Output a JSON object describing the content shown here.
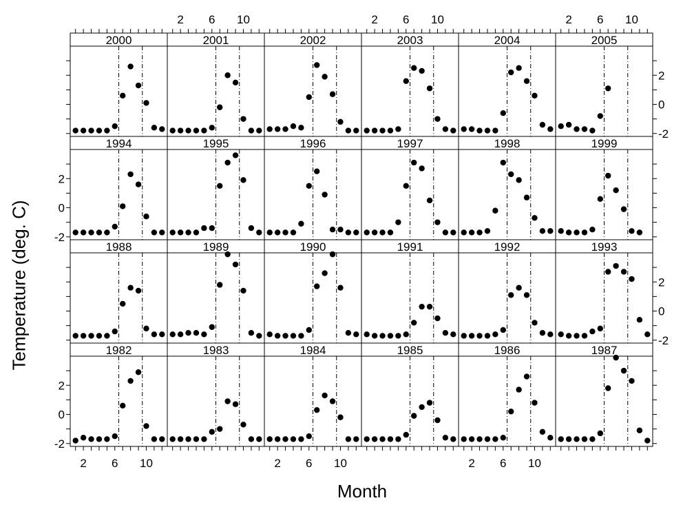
{
  "chart_data": {
    "type": "scatter",
    "layout": "trellis panels, 6 columns x 4 rows",
    "xlabel": "Month",
    "ylabel": "Temperature (deg. C)",
    "x_ticks": [
      2,
      6,
      10
    ],
    "y_ticks": [
      -2,
      0,
      2
    ],
    "xlim": [
      0.5,
      12.5
    ],
    "ylim": [
      -2.2,
      4.0
    ],
    "reference_lines_month": [
      6.5,
      9.5
    ],
    "reference_line_style": "dash-dot",
    "panels": [
      {
        "year": "2000",
        "values": [
          -1.8,
          -1.8,
          -1.8,
          -1.8,
          -1.8,
          -1.5,
          0.6,
          2.6,
          1.3,
          0.1,
          -1.6,
          -1.7
        ]
      },
      {
        "year": "2001",
        "values": [
          -1.8,
          -1.8,
          -1.8,
          -1.8,
          -1.8,
          -1.6,
          -0.2,
          2.0,
          1.5,
          -1.0,
          -1.8,
          -1.8
        ]
      },
      {
        "year": "2002",
        "values": [
          -1.7,
          -1.7,
          -1.7,
          -1.5,
          -1.6,
          0.5,
          2.7,
          1.9,
          0.7,
          -1.2,
          -1.8,
          -1.8
        ]
      },
      {
        "year": "2003",
        "values": [
          -1.8,
          -1.8,
          -1.8,
          -1.8,
          -1.7,
          1.6,
          2.5,
          2.3,
          1.1,
          -1.0,
          -1.7,
          -1.8
        ]
      },
      {
        "year": "2004",
        "values": [
          -1.7,
          -1.7,
          -1.8,
          -1.8,
          -1.8,
          -0.6,
          2.2,
          2.5,
          1.6,
          0.6,
          -1.4,
          -1.7
        ]
      },
      {
        "year": "2005",
        "values": [
          -1.5,
          -1.4,
          -1.7,
          -1.7,
          -1.8,
          -0.8,
          1.1,
          null,
          null,
          null,
          null,
          null
        ]
      },
      {
        "year": "1994",
        "values": [
          -1.7,
          -1.7,
          -1.7,
          -1.7,
          -1.7,
          -1.3,
          0.1,
          2.3,
          1.6,
          -0.6,
          -1.7,
          -1.7
        ]
      },
      {
        "year": "1995",
        "values": [
          -1.7,
          -1.7,
          -1.7,
          -1.7,
          -1.4,
          -1.4,
          1.5,
          3.1,
          3.6,
          1.9,
          -1.4,
          -1.7
        ]
      },
      {
        "year": "1996",
        "values": [
          -1.7,
          -1.7,
          -1.7,
          -1.7,
          -1.1,
          1.5,
          2.5,
          0.9,
          -1.5,
          -1.5,
          -1.7,
          -1.7
        ]
      },
      {
        "year": "1997",
        "values": [
          -1.7,
          -1.7,
          -1.7,
          -1.7,
          -1.0,
          1.5,
          3.1,
          2.7,
          0.5,
          -1.0,
          -1.7,
          -1.7
        ]
      },
      {
        "year": "1998",
        "values": [
          -1.7,
          -1.7,
          -1.7,
          -1.6,
          -0.2,
          3.1,
          2.3,
          1.9,
          0.7,
          -0.7,
          -1.6,
          -1.6
        ]
      },
      {
        "year": "1999",
        "values": [
          -1.6,
          -1.7,
          -1.7,
          -1.7,
          -1.5,
          0.6,
          2.2,
          1.2,
          -0.1,
          -1.6,
          -1.7,
          null
        ]
      },
      {
        "year": "1988",
        "values": [
          -1.7,
          -1.7,
          -1.7,
          -1.7,
          -1.7,
          -1.4,
          0.5,
          1.6,
          1.4,
          -1.2,
          -1.6,
          -1.6
        ]
      },
      {
        "year": "1989",
        "values": [
          -1.6,
          -1.6,
          -1.5,
          -1.5,
          -1.6,
          -1.1,
          1.8,
          3.9,
          3.2,
          1.4,
          -1.5,
          -1.7
        ]
      },
      {
        "year": "1990",
        "values": [
          -1.6,
          -1.7,
          -1.7,
          -1.7,
          -1.7,
          -1.3,
          1.7,
          2.6,
          3.9,
          1.6,
          -1.5,
          -1.6
        ]
      },
      {
        "year": "1991",
        "values": [
          -1.6,
          -1.7,
          -1.7,
          -1.7,
          -1.7,
          -1.6,
          -0.8,
          0.3,
          0.3,
          -0.5,
          -1.5,
          -1.6
        ]
      },
      {
        "year": "1992",
        "values": [
          -1.7,
          -1.7,
          -1.7,
          -1.7,
          -1.6,
          -1.3,
          1.1,
          1.6,
          1.1,
          -0.8,
          -1.5,
          -1.6
        ]
      },
      {
        "year": "1993",
        "values": [
          -1.6,
          -1.7,
          -1.7,
          -1.7,
          -1.4,
          -1.2,
          2.7,
          3.1,
          2.7,
          2.2,
          -0.6,
          -1.6
        ]
      },
      {
        "year": "1982",
        "values": [
          -1.8,
          -1.6,
          -1.7,
          -1.7,
          -1.7,
          -1.5,
          0.6,
          2.3,
          2.9,
          -0.8,
          -1.7,
          -1.7
        ]
      },
      {
        "year": "1983",
        "values": [
          -1.7,
          -1.7,
          -1.7,
          -1.7,
          -1.7,
          -1.2,
          -1.0,
          0.9,
          0.7,
          -0.7,
          -1.7,
          -1.7
        ]
      },
      {
        "year": "1984",
        "values": [
          -1.7,
          -1.7,
          -1.7,
          -1.7,
          -1.7,
          -1.5,
          0.3,
          1.3,
          0.9,
          -0.2,
          -1.7,
          -1.7
        ]
      },
      {
        "year": "1985",
        "values": [
          -1.7,
          -1.7,
          -1.7,
          -1.7,
          -1.7,
          -1.4,
          -0.1,
          0.5,
          0.8,
          -0.4,
          -1.6,
          -1.7
        ]
      },
      {
        "year": "1986",
        "values": [
          -1.7,
          -1.7,
          -1.7,
          -1.7,
          -1.7,
          -1.6,
          0.2,
          1.7,
          2.6,
          0.8,
          -1.2,
          -1.6
        ]
      },
      {
        "year": "1987",
        "values": [
          -1.7,
          -1.7,
          -1.7,
          -1.7,
          -1.7,
          -1.3,
          1.8,
          3.9,
          3.0,
          2.3,
          -1.1,
          -1.8
        ]
      }
    ]
  }
}
